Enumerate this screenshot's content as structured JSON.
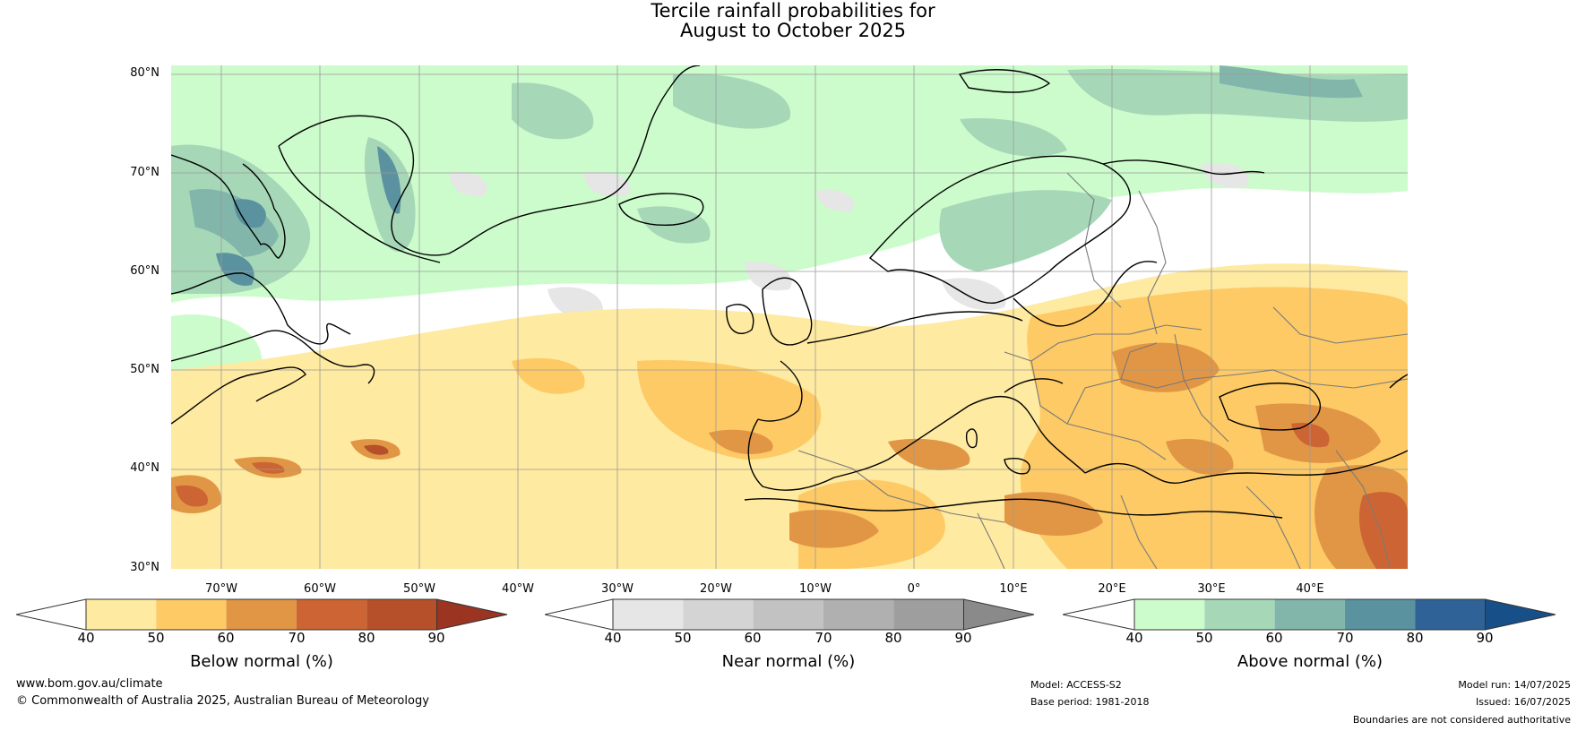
{
  "title": {
    "line1": "Tercile rainfall probabilities for",
    "line2": "August to October 2025"
  },
  "map": {
    "lat_labels": [
      "80°N",
      "70°N",
      "60°N",
      "50°N",
      "40°N",
      "30°N"
    ],
    "lon_labels": [
      "70°W",
      "60°W",
      "50°W",
      "40°W",
      "30°W",
      "20°W",
      "10°W",
      "0°",
      "10°E",
      "20°E",
      "30°E",
      "40°E"
    ],
    "colors": {
      "ocean_bg": "#ffffff",
      "grid": "#9a9a9a",
      "coast": "#000000",
      "border": "#7a7a7a"
    }
  },
  "colorbars": [
    {
      "name": "below",
      "title": "Below normal (%)",
      "ticks": [
        "40",
        "50",
        "60",
        "70",
        "80",
        "90"
      ],
      "colors": [
        "#ffffff",
        "#feeaa1",
        "#fdca66",
        "#e09645",
        "#cc6533",
        "#b5502b",
        "#9b3522"
      ]
    },
    {
      "name": "near",
      "title": "Near normal (%)",
      "ticks": [
        "40",
        "50",
        "60",
        "70",
        "80",
        "90"
      ],
      "colors": [
        "#ffffff",
        "#e6e6e6",
        "#d4d4d4",
        "#c2c2c2",
        "#b0b0b0",
        "#9e9e9e",
        "#8a8a8a"
      ]
    },
    {
      "name": "above",
      "title": "Above normal (%)",
      "ticks": [
        "40",
        "50",
        "60",
        "70",
        "80",
        "90"
      ],
      "colors": [
        "#ffffff",
        "#ccfccc",
        "#a6d8b8",
        "#82b6aa",
        "#5a92a0",
        "#2f6296",
        "#174f88"
      ]
    }
  ],
  "footer": {
    "url": "www.bom.gov.au/climate",
    "copyright": "© Commonwealth of Australia 2025, Australian Bureau of Meteorology",
    "model": "Model: ACCESS-S2",
    "base_period": "Base period: 1981-2018",
    "model_run": "Model run: 14/07/2025",
    "issued": "Issued: 16/07/2025",
    "disclaimer": "Boundaries are not considered authoritative"
  }
}
